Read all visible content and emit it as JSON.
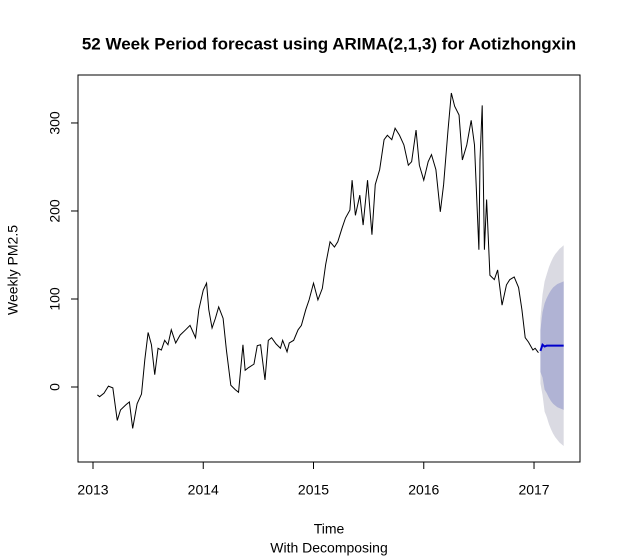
{
  "chart_data": {
    "type": "line",
    "title": "52 Week Period forecast using ARIMA(2,1,3) for Aotizhongxin",
    "xlabel": "Time",
    "subtitle": "With Decomposing",
    "ylabel": "Weekly PM2.5",
    "xlim": [
      2012.864,
      2017.417
    ],
    "ylim": [
      -85.2,
      354.5
    ],
    "xticks": [
      2013,
      2014,
      2015,
      2016,
      2017
    ],
    "yticks": [
      0,
      100,
      200,
      300
    ],
    "x": [
      2013.04,
      2013.06,
      2013.1,
      2013.14,
      2013.18,
      2013.22,
      2013.25,
      2013.3,
      2013.33,
      2013.36,
      2013.4,
      2013.44,
      2013.47,
      2013.5,
      2013.53,
      2013.56,
      2013.59,
      2013.62,
      2013.65,
      2013.68,
      2013.71,
      2013.75,
      2013.79,
      2013.84,
      2013.88,
      2013.93,
      2013.96,
      2014.0,
      2014.03,
      2014.05,
      2014.08,
      2014.11,
      2014.14,
      2014.18,
      2014.21,
      2014.25,
      2014.29,
      2014.32,
      2014.36,
      2014.38,
      2014.41,
      2014.46,
      2014.49,
      2014.52,
      2014.56,
      2014.59,
      2014.62,
      2014.66,
      2014.7,
      2014.72,
      2014.76,
      2014.78,
      2014.82,
      2014.86,
      2014.89,
      2014.93,
      2014.96,
      2015.0,
      2015.04,
      2015.08,
      2015.11,
      2015.15,
      2015.19,
      2015.22,
      2015.26,
      2015.29,
      2015.33,
      2015.35,
      2015.38,
      2015.42,
      2015.45,
      2015.49,
      2015.53,
      2015.56,
      2015.6,
      2015.64,
      2015.67,
      2015.71,
      2015.74,
      2015.78,
      2015.82,
      2015.86,
      2015.89,
      2015.93,
      2015.96,
      2016.0,
      2016.04,
      2016.07,
      2016.11,
      2016.15,
      2016.18,
      2016.22,
      2016.25,
      2016.28,
      2016.32,
      2016.35,
      2016.39,
      2016.43,
      2016.46,
      2016.5,
      2016.51,
      2016.53,
      2016.55,
      2016.57,
      2016.6,
      2016.64,
      2016.67,
      2016.71,
      2016.75,
      2016.78,
      2016.82,
      2016.86,
      2016.89,
      2016.92,
      2016.95,
      2016.99,
      2017.01,
      2017.04
    ],
    "series": [
      {
        "name": "Weekly PM2.5",
        "color": "#000000",
        "values": [
          -9,
          -11,
          -7,
          1,
          -1,
          -38,
          -26,
          -20,
          -17,
          -47,
          -19,
          -8,
          31,
          62,
          48,
          14,
          44,
          42,
          53,
          48,
          65,
          50,
          59,
          65,
          70,
          56,
          88,
          110,
          118,
          88,
          67,
          78,
          91,
          78,
          42,
          2,
          -3,
          -6,
          48,
          19,
          22,
          26,
          47,
          48,
          8,
          53,
          56,
          49,
          44,
          53,
          40,
          50,
          53,
          65,
          70,
          88,
          99,
          118,
          99,
          112,
          139,
          165,
          159,
          165,
          181,
          192,
          201,
          235,
          195,
          218,
          184,
          235,
          173,
          230,
          247,
          281,
          286,
          281,
          294,
          286,
          275,
          252,
          256,
          292,
          252,
          235,
          256,
          264,
          247,
          199,
          230,
          292,
          334,
          319,
          309,
          258,
          275,
          303,
          275,
          156,
          258,
          320,
          156,
          213,
          127,
          122,
          133,
          93,
          116,
          122,
          125,
          113,
          88,
          56,
          51,
          42,
          44,
          39
        ]
      }
    ],
    "forecast": {
      "x": [
        2017.058,
        2017.077,
        2017.096,
        2017.115,
        2017.135,
        2017.154,
        2017.173,
        2017.192,
        2017.212,
        2017.231,
        2017.25,
        2017.269
      ],
      "mean": [
        41,
        48,
        46,
        47,
        47,
        47,
        47,
        47,
        47,
        47,
        47,
        47
      ],
      "lo80": [
        17,
        11,
        -3,
        -7,
        -12,
        -16,
        -19,
        -21,
        -23,
        -24,
        -25,
        -26
      ],
      "hi80": [
        65,
        85,
        95,
        101,
        106,
        110,
        113,
        115,
        117,
        118,
        119,
        120
      ],
      "lo95": [
        4,
        -9,
        -28,
        -34,
        -42,
        -48,
        -53,
        -57,
        -60,
        -63,
        -65,
        -67
      ],
      "hi95": [
        78,
        105,
        120,
        128,
        136,
        142,
        147,
        151,
        154,
        157,
        159,
        161
      ],
      "color": "#0000cc",
      "color80": "#b0b3d4",
      "color95": "#dadae2"
    }
  }
}
